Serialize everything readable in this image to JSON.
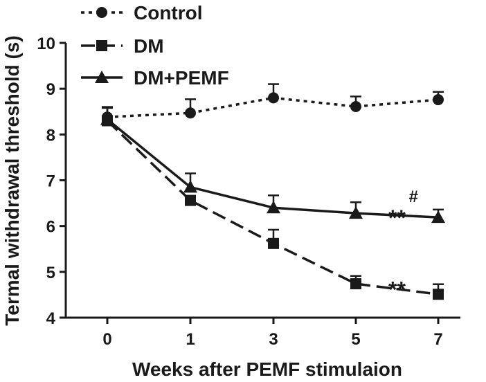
{
  "chart_data": {
    "type": "line",
    "title": "",
    "xlabel": "Weeks after PEMF stimulaion",
    "ylabel": "Termal withdrawal threshold (s)",
    "x": [
      0,
      1,
      3,
      5,
      7
    ],
    "x_tick_labels": [
      "0",
      "1",
      "3",
      "5",
      "7"
    ],
    "ylim": [
      4,
      10
    ],
    "y_ticks": [
      4,
      5,
      6,
      7,
      8,
      9,
      10
    ],
    "y_tick_labels": [
      "4",
      "5",
      "6",
      "7",
      "8",
      "9",
      "10"
    ],
    "legend_position": "top-left",
    "series": [
      {
        "name": "Control",
        "marker": "circle",
        "line_style": "dotted",
        "values": [
          8.38,
          8.47,
          8.8,
          8.61,
          8.76
        ],
        "errors": [
          0.22,
          0.3,
          0.3,
          0.22,
          0.17
        ]
      },
      {
        "name": "DM",
        "marker": "square",
        "line_style": "dashed",
        "values": [
          8.3,
          6.56,
          5.62,
          4.74,
          4.51
        ],
        "errors": [
          0.3,
          0.1,
          0.3,
          0.17,
          0.22
        ]
      },
      {
        "name": "DM+PEMF",
        "marker": "triangle",
        "line_style": "solid",
        "values": [
          8.33,
          6.85,
          6.4,
          6.28,
          6.19
        ],
        "errors": [
          0.25,
          0.3,
          0.27,
          0.24,
          0.17
        ]
      }
    ],
    "annotations": [
      {
        "text": "#",
        "x": 6.4,
        "y": 6.66,
        "size": "medium"
      },
      {
        "text": "**",
        "x": 6.0,
        "y": 6.28,
        "size": "large"
      },
      {
        "text": "**",
        "x": 6.0,
        "y": 4.72,
        "size": "large"
      }
    ],
    "colors": {
      "ink": "#1a1a1a",
      "background": "#ffffff"
    }
  }
}
